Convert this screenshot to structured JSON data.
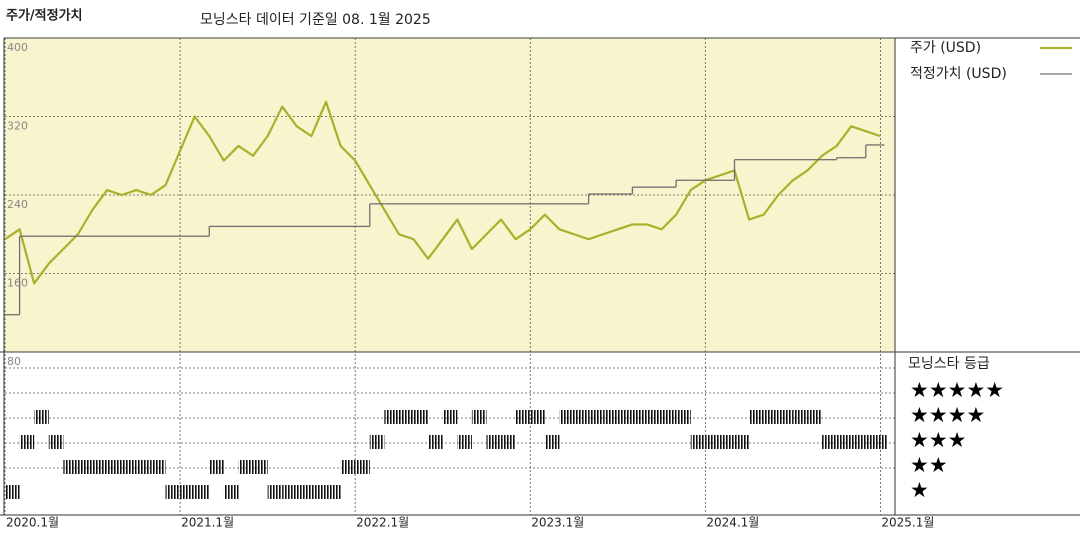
{
  "chart_data": {
    "type": "line",
    "title": "주가/적정가치",
    "subtitle": "모닝스타 데이터 기준일 08. 1월 2025",
    "x": [
      "2020.01",
      "2020.02",
      "2020.03",
      "2020.04",
      "2020.05",
      "2020.06",
      "2020.07",
      "2020.08",
      "2020.09",
      "2020.10",
      "2020.11",
      "2020.12",
      "2021.01",
      "2021.02",
      "2021.03",
      "2021.04",
      "2021.05",
      "2021.06",
      "2021.07",
      "2021.08",
      "2021.09",
      "2021.10",
      "2021.11",
      "2021.12",
      "2022.01",
      "2022.02",
      "2022.03",
      "2022.04",
      "2022.05",
      "2022.06",
      "2022.07",
      "2022.08",
      "2022.09",
      "2022.10",
      "2022.11",
      "2022.12",
      "2023.01",
      "2023.02",
      "2023.03",
      "2023.04",
      "2023.05",
      "2023.06",
      "2023.07",
      "2023.08",
      "2023.09",
      "2023.10",
      "2023.11",
      "2023.12",
      "2024.01",
      "2024.02",
      "2024.03",
      "2024.04",
      "2024.05",
      "2024.06",
      "2024.07",
      "2024.08",
      "2024.09",
      "2024.10",
      "2024.11",
      "2024.12",
      "2025.01"
    ],
    "series": [
      {
        "name": "주가 (USD)",
        "color": "#a9b02b",
        "values": [
          195,
          205,
          150,
          170,
          185,
          200,
          225,
          245,
          240,
          245,
          240,
          250,
          285,
          320,
          300,
          275,
          290,
          280,
          300,
          330,
          310,
          300,
          335,
          290,
          275,
          250,
          225,
          200,
          195,
          175,
          195,
          215,
          185,
          200,
          215,
          195,
          205,
          220,
          205,
          200,
          195,
          200,
          205,
          210,
          210,
          205,
          220,
          245,
          255,
          260,
          265,
          215,
          220,
          240,
          255,
          265,
          280,
          290,
          310,
          305,
          300
        ]
      },
      {
        "name": "적정가치 (USD)",
        "color": "#707070",
        "step": true,
        "values": [
          118,
          198,
          198,
          198,
          198,
          198,
          198,
          198,
          198,
          198,
          198,
          198,
          198,
          198,
          208,
          208,
          208,
          208,
          208,
          208,
          208,
          208,
          208,
          208,
          208,
          231,
          231,
          231,
          231,
          231,
          231,
          231,
          231,
          231,
          231,
          231,
          231,
          231,
          231,
          231,
          241,
          241,
          241,
          248,
          248,
          248,
          255,
          255,
          255,
          255,
          276,
          276,
          276,
          276,
          276,
          276,
          276,
          278,
          278,
          291,
          291
        ]
      }
    ],
    "xlim": [
      "2020.01",
      "2025.02"
    ],
    "xticks": [
      {
        "value": "2020.01",
        "label": "2020.1월"
      },
      {
        "value": "2021.01",
        "label": "2021.1월"
      },
      {
        "value": "2022.01",
        "label": "2022.1월"
      },
      {
        "value": "2023.01",
        "label": "2023.1월"
      },
      {
        "value": "2024.01",
        "label": "2024.1월"
      },
      {
        "value": "2025.01",
        "label": "2025.1월"
      }
    ],
    "ylim": [
      80,
      400
    ],
    "yticks": [
      80,
      160,
      240,
      320,
      400
    ],
    "grid": true,
    "rating": {
      "title": "모닝스타 등급",
      "legend": [
        "★★★★★",
        "★★★★",
        "★★★",
        "★★",
        "★"
      ],
      "values": [
        1,
        3,
        4,
        3,
        2,
        2,
        2,
        2,
        2,
        2,
        2,
        1,
        1,
        1,
        2,
        1,
        2,
        2,
        1,
        1,
        1,
        1,
        1,
        2,
        2,
        3,
        4,
        4,
        4,
        3,
        4,
        3,
        4,
        3,
        3,
        4,
        4,
        3,
        4,
        4,
        4,
        4,
        4,
        4,
        4,
        4,
        4,
        3,
        3,
        3,
        3,
        4,
        4,
        4,
        4,
        4,
        3,
        3,
        3,
        3,
        3
      ]
    }
  }
}
